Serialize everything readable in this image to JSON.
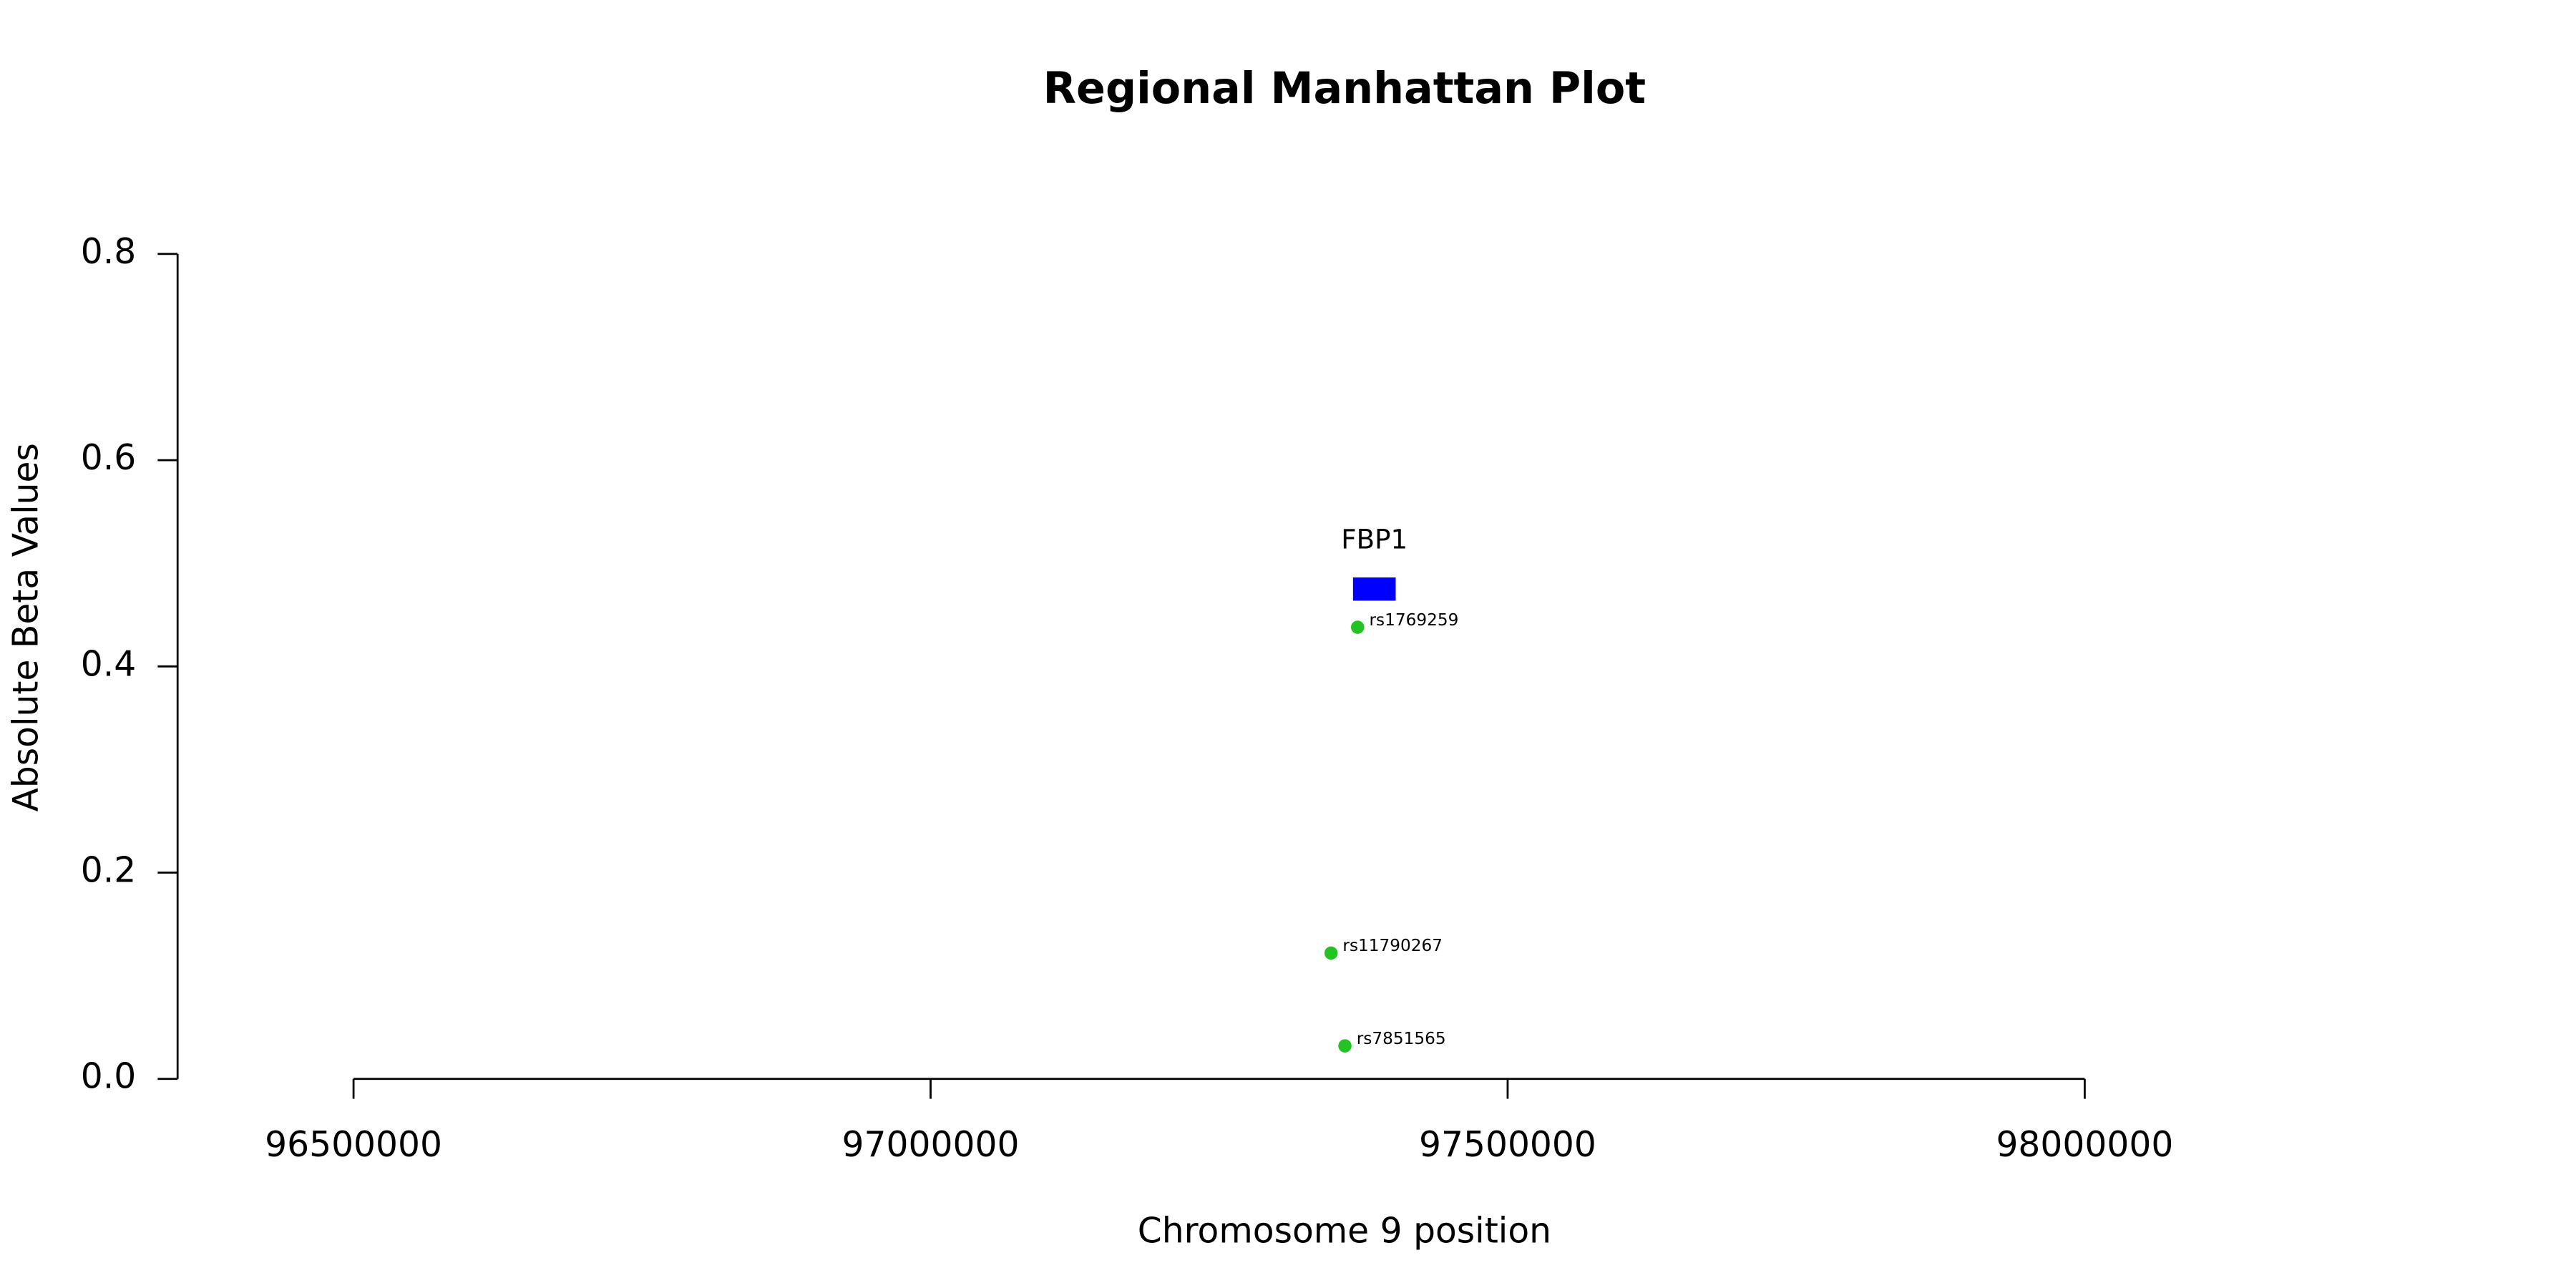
{
  "chart_data": {
    "type": "scatter",
    "title": "Regional Manhattan Plot",
    "x_label": "Chromosome 9 position",
    "y_label": "Absolute Beta Values",
    "x": [
      97370000,
      97347000,
      97359000
    ],
    "values": [
      0.438,
      0.122,
      0.032
    ],
    "point_labels": [
      "rs1769259",
      "rs11790267",
      "rs7851565"
    ],
    "color": "#22c322",
    "genes": [
      {
        "name": "FBP1",
        "start": 97366000,
        "end": 97403000,
        "y": 0.475,
        "color": "#0000ff"
      }
    ],
    "xlim": [
      96500000,
      98000000
    ],
    "xticks": [
      96500000,
      97000000,
      97500000,
      98000000
    ],
    "ylim": [
      0,
      0.8
    ],
    "yticks": [
      {
        "value": 0,
        "label": "0.0"
      },
      0.2,
      0.4,
      0.6,
      0.8
    ]
  }
}
